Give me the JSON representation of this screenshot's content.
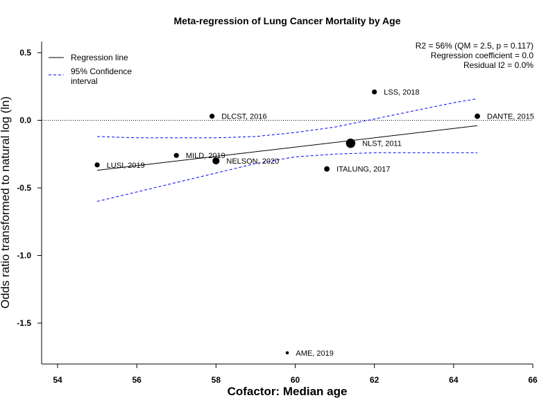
{
  "chart_data": {
    "type": "scatter",
    "title": "Meta-regression of  Lung Cancer Mortality by Age",
    "xlabel": "Cofactor:  Median age",
    "ylabel": "Odds ratio transformed to natural log (ln)",
    "xlim": [
      53.6,
      66.0
    ],
    "ylim": [
      -1.8,
      0.58
    ],
    "xticks": [
      54,
      56,
      58,
      60,
      62,
      64,
      66
    ],
    "yticks": [
      0.5,
      0.0,
      -0.5,
      -1.0,
      -1.5
    ],
    "xtick_labels": [
      "54",
      "56",
      "58",
      "60",
      "62",
      "64",
      "66"
    ],
    "ytick_labels": [
      "0.5",
      "0.0",
      "-0.5",
      "-1.0",
      "-1.5"
    ],
    "reference_line_y": 0.0,
    "grid": false,
    "legend_position": "top-left",
    "legend": {
      "regression": "Regression line",
      "ci_line1": "95% Confidence",
      "ci_line2": "interval"
    },
    "stats": {
      "line1": "R2 = 56% (QM = 2.5, p = 0.117)",
      "line2": "Regression coefficient = 0.0",
      "line3": "Residual I2 = 0.0%"
    },
    "colors": {
      "points": "#000000",
      "regression": "#000000",
      "ci": "#0000ff",
      "reference": "#000000"
    },
    "points": [
      {
        "label": "LUSI, 2019",
        "x": 55.0,
        "y": -0.33,
        "weight": 1.0
      },
      {
        "label": "MILD, 2019",
        "x": 57.0,
        "y": -0.26,
        "weight": 1.0
      },
      {
        "label": "DLCST, 2016",
        "x": 57.9,
        "y": 0.03,
        "weight": 1.0
      },
      {
        "label": "NELSON, 2020",
        "x": 58.0,
        "y": -0.3,
        "weight": 2.0
      },
      {
        "label": "AME, 2019",
        "x": 59.8,
        "y": -1.72,
        "weight": 0.4
      },
      {
        "label": "ITALUNG, 2017",
        "x": 60.8,
        "y": -0.36,
        "weight": 1.2
      },
      {
        "label": "NLST, 2011",
        "x": 61.4,
        "y": -0.17,
        "weight": 3.5
      },
      {
        "label": "LSS, 2018",
        "x": 62.0,
        "y": 0.21,
        "weight": 1.0
      },
      {
        "label": "DANTE, 2015",
        "x": 64.6,
        "y": 0.03,
        "weight": 1.2
      }
    ],
    "regression_line": {
      "x": [
        55.0,
        64.6
      ],
      "y": [
        -0.37,
        -0.04
      ]
    },
    "ci_upper": {
      "x": [
        55.0,
        56.0,
        57.0,
        58.0,
        59.0,
        60.0,
        61.0,
        62.0,
        63.0,
        64.0,
        64.6
      ],
      "y": [
        -0.12,
        -0.13,
        -0.13,
        -0.13,
        -0.12,
        -0.09,
        -0.05,
        0.01,
        0.07,
        0.13,
        0.16
      ]
    },
    "ci_lower": {
      "x": [
        55.0,
        56.0,
        57.0,
        58.0,
        59.0,
        60.0,
        61.0,
        62.0,
        63.0,
        64.0,
        64.6
      ],
      "y": [
        -0.6,
        -0.53,
        -0.46,
        -0.39,
        -0.32,
        -0.27,
        -0.25,
        -0.24,
        -0.24,
        -0.24,
        -0.24
      ]
    }
  }
}
